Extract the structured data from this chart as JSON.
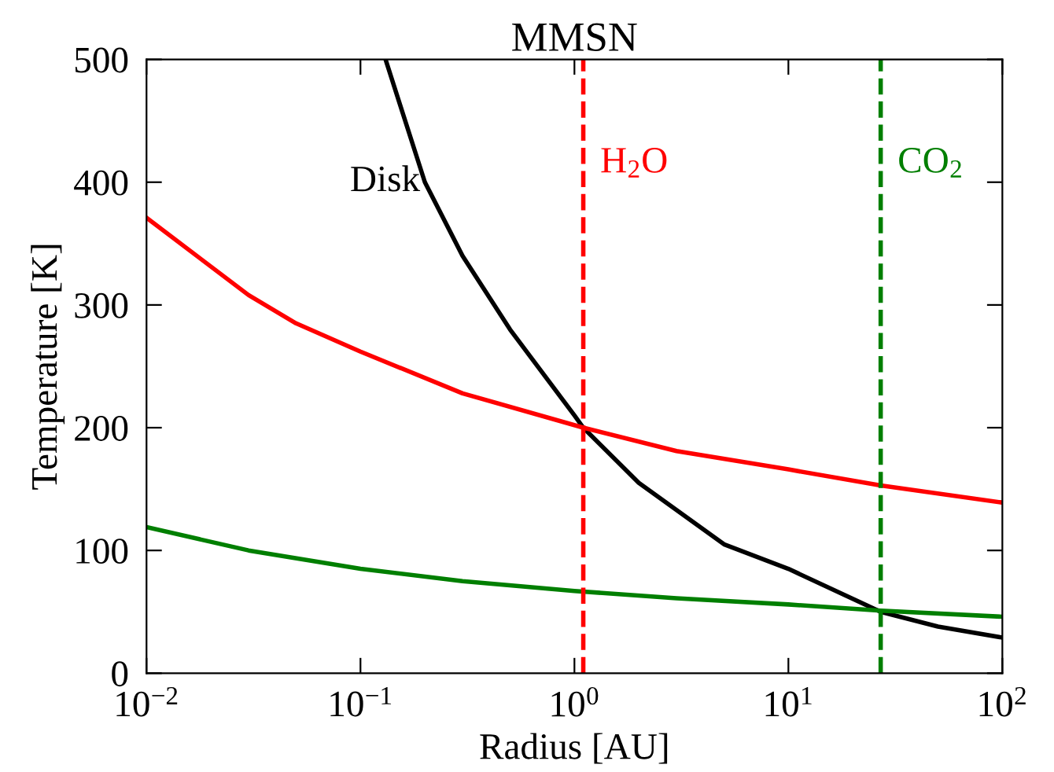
{
  "chart_data": {
    "type": "line",
    "title": "MMSN",
    "xlabel": "Radius [AU]",
    "ylabel": "Temperature [K]",
    "log": "x",
    "grid": false,
    "legend": false,
    "line_style": "solid",
    "marker": "none",
    "xlim": [
      0.01,
      100
    ],
    "ylim": [
      0,
      500
    ],
    "xticks": [
      {
        "value": 0.01,
        "label": "10$^{−2}$"
      },
      {
        "value": 0.1,
        "label": "10$^{−1}$"
      },
      {
        "value": 1,
        "label": "10$^{0}$"
      },
      {
        "value": 10,
        "label": "10$^{1}$"
      },
      {
        "value": 100,
        "label": "10$^{2}$"
      }
    ],
    "yticks": [
      0,
      100,
      200,
      300,
      400,
      500
    ],
    "series": [
      {
        "name": "Disk",
        "color": "#000000",
        "x": [
          0.131,
          0.2,
          0.3,
          0.5,
          1,
          1.1,
          2,
          5,
          10,
          27,
          50,
          100
        ],
        "values": [
          500,
          400,
          340,
          280,
          210,
          200,
          155,
          105,
          85,
          50,
          38,
          29
        ]
      },
      {
        "color": "#ff0000",
        "x": [
          0.01,
          0.03,
          0.05,
          0.1,
          0.3,
          1.1,
          3,
          10,
          27,
          100
        ],
        "values": [
          371,
          308,
          285,
          262,
          228,
          200,
          181,
          166,
          153,
          139
        ]
      },
      {
        "color": "#007f00",
        "x": [
          0.01,
          0.03,
          0.1,
          0.3,
          1,
          3,
          10,
          27,
          100
        ],
        "values": [
          119,
          100,
          85,
          75,
          67,
          61,
          56,
          51,
          46
        ]
      }
    ],
    "ref_lines": [
      {
        "axis": "x",
        "value": 1.1,
        "label": "H$_{2}$O",
        "color": "#ff0000",
        "line_style": "dashed"
      },
      {
        "axis": "x",
        "value": 27,
        "label": "CO$_{2}$",
        "color": "#007f00",
        "line_style": "dashed"
      }
    ]
  }
}
